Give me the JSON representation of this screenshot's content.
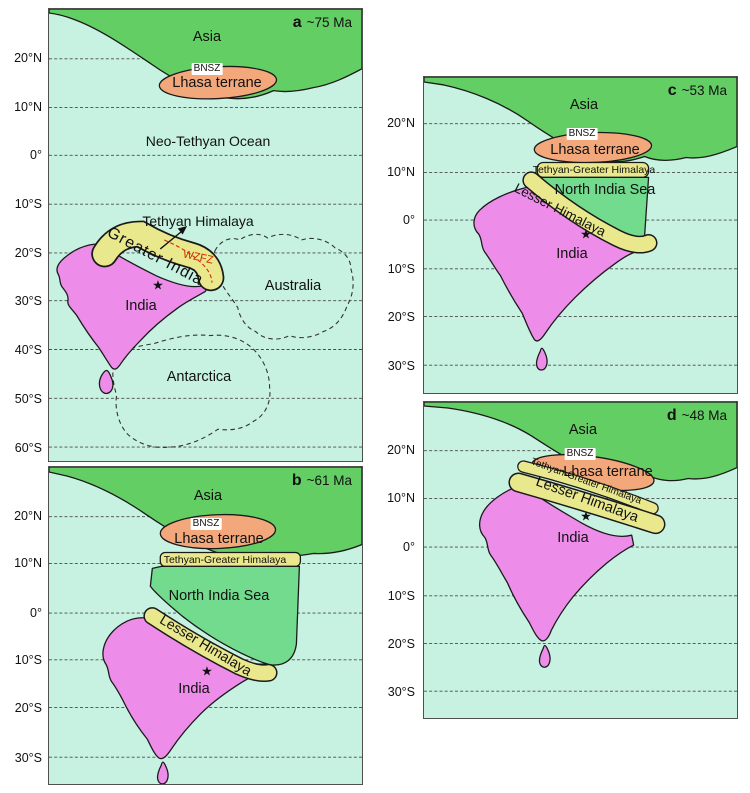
{
  "figure": {
    "colors": {
      "ocean": "#c7f2e2",
      "asia": "#63ce63",
      "sea": "#72db8e",
      "lhasa": "#f3a87c",
      "band": "#e9e88c",
      "india": "#ee8ce9",
      "wzfz": "#d42a00"
    },
    "panels": {
      "a": {
        "letter": "a",
        "age": "~75 Ma",
        "lats": [
          "20°N",
          "10°N",
          "0°",
          "10°S",
          "20°S",
          "30°S",
          "40°S",
          "50°S",
          "60°S"
        ],
        "asia": "Asia",
        "bnsz": "BNSZ",
        "lhasa": "Lhasa terrane",
        "ocean": "Neo-Tethyan Ocean",
        "tethyan": "Tethyan Himalaya",
        "greater": "Greater India",
        "wzfz": "WZFZ",
        "india": "India",
        "australia": "Australia",
        "antarctica": "Antarctica",
        "star": "★"
      },
      "b": {
        "letter": "b",
        "age": "~61 Ma",
        "lats": [
          "20°N",
          "10°N",
          "0°",
          "10°S",
          "20°S",
          "30°S"
        ],
        "asia": "Asia",
        "bnsz": "BNSZ",
        "lhasa": "Lhasa terrane",
        "tg": "Tethyan-Greater Himalaya",
        "sea": "North India Sea",
        "lesser": "Lesser Himalaya",
        "india": "India",
        "star": "★"
      },
      "c": {
        "letter": "c",
        "age": "~53 Ma",
        "lats": [
          "20°N",
          "10°N",
          "0°",
          "10°S",
          "20°S",
          "30°S"
        ],
        "asia": "Asia",
        "bnsz": "BNSZ",
        "lhasa": "Lhasa terrane",
        "tg": "Tethyan-Greater Himalaya",
        "sea": "North India Sea",
        "lesser": "Lesser Himalaya",
        "india": "India",
        "star": "★"
      },
      "d": {
        "letter": "d",
        "age": "~48 Ma",
        "lats": [
          "20°N",
          "10°N",
          "0°",
          "10°S",
          "20°S",
          "30°S"
        ],
        "asia": "Asia",
        "bnsz": "BNSZ",
        "lhasa": "Lhasa terrane",
        "tg": "Tethyan-Greater Himalaya",
        "lesser": "Lesser Himalaya",
        "india": "India",
        "star": "★"
      }
    }
  }
}
